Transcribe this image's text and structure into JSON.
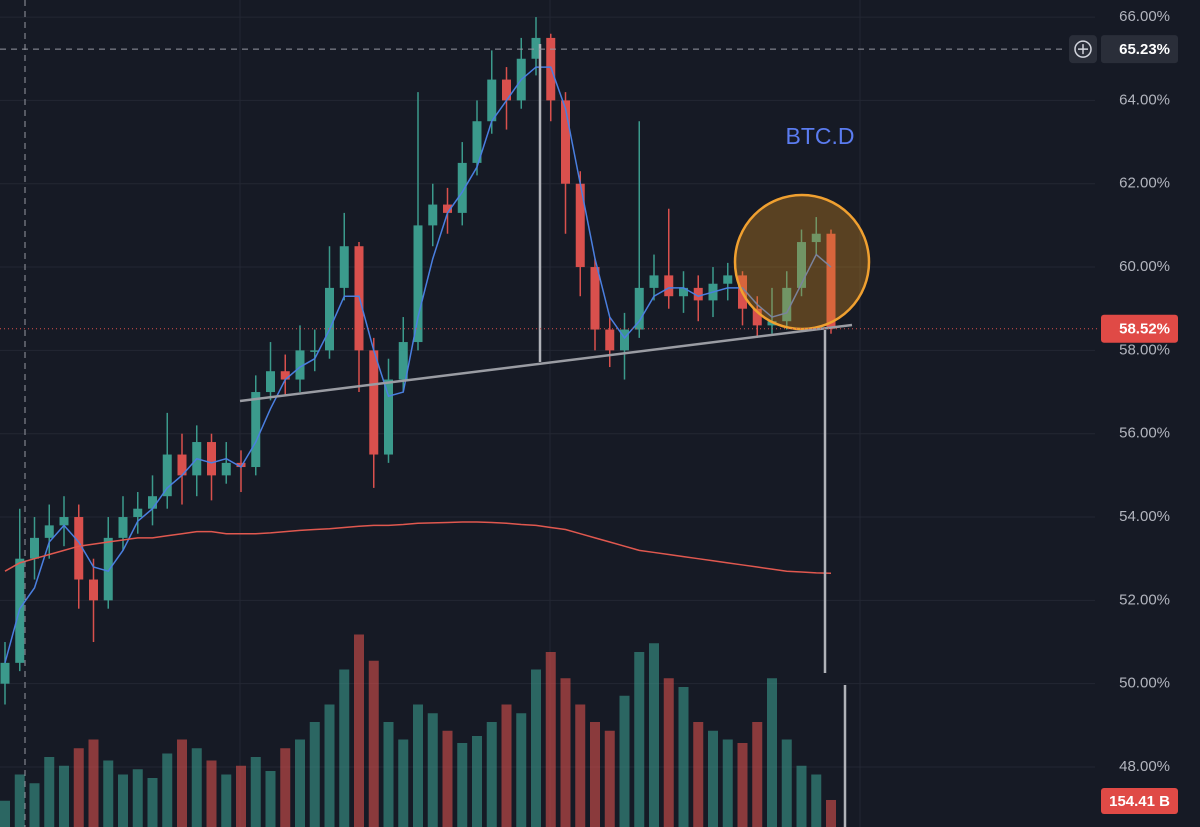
{
  "chart_data": {
    "type": "candlestick",
    "annotation": "BTC.D",
    "ylim": [
      46.56,
      66.41
    ],
    "yticks": [
      {
        "value": 48,
        "label": "48.00%"
      },
      {
        "value": 50,
        "label": "50.00%"
      },
      {
        "value": 52,
        "label": "52.00%"
      },
      {
        "value": 54,
        "label": "54.00%"
      },
      {
        "value": 56,
        "label": "56.00%"
      },
      {
        "value": 58,
        "label": "58.00%"
      },
      {
        "value": 60,
        "label": "60.00%"
      },
      {
        "value": 62,
        "label": "62.00%"
      },
      {
        "value": 64,
        "label": "64.00%"
      },
      {
        "value": 66,
        "label": "66.00%"
      }
    ],
    "up_color": "#3b9a8c",
    "down_color": "#d9504d",
    "open": [
      50.0,
      50.5,
      53.0,
      53.5,
      53.8,
      54.0,
      52.5,
      52.0,
      53.5,
      54.0,
      54.2,
      54.5,
      55.5,
      55.0,
      55.8,
      55.0,
      55.3,
      55.2,
      57.0,
      57.5,
      57.3,
      58.0,
      58.0,
      59.5,
      60.5,
      58.0,
      55.5,
      57.3,
      58.2,
      61.0,
      61.5,
      61.3,
      62.5,
      63.5,
      64.5,
      64.0,
      65.0,
      65.5,
      64.0,
      62.0,
      60.0,
      58.5,
      58.0,
      58.5,
      59.5,
      59.8,
      59.3,
      59.5,
      59.2,
      59.6,
      59.8,
      59.0,
      58.6,
      58.7,
      59.5,
      60.6,
      60.8
    ],
    "high": [
      51.0,
      54.2,
      54.0,
      54.3,
      54.5,
      54.3,
      53.0,
      54.0,
      54.5,
      54.6,
      55.0,
      56.5,
      56.0,
      56.2,
      56.0,
      55.8,
      55.6,
      57.4,
      58.2,
      57.9,
      58.6,
      58.5,
      60.5,
      61.3,
      60.6,
      58.3,
      57.8,
      58.8,
      64.2,
      62.0,
      61.9,
      63.0,
      64.0,
      65.2,
      64.8,
      65.5,
      66.0,
      65.6,
      64.2,
      62.3,
      60.2,
      58.8,
      58.9,
      63.5,
      60.3,
      61.4,
      59.9,
      59.8,
      60.0,
      60.1,
      59.9,
      59.3,
      59.5,
      59.9,
      60.9,
      61.2,
      60.9
    ],
    "low": [
      49.5,
      50.3,
      52.5,
      53.0,
      53.3,
      51.8,
      51.0,
      51.8,
      53.2,
      53.6,
      53.8,
      54.2,
      54.3,
      54.5,
      54.4,
      54.8,
      54.6,
      55.0,
      56.8,
      56.9,
      57.0,
      57.5,
      57.8,
      59.2,
      57.0,
      54.7,
      55.3,
      57.0,
      58.0,
      60.5,
      60.8,
      61.0,
      62.2,
      63.2,
      63.3,
      63.8,
      64.6,
      63.5,
      60.8,
      59.3,
      58.0,
      57.6,
      57.3,
      58.3,
      59.2,
      59.0,
      58.9,
      58.7,
      58.8,
      59.2,
      58.6,
      58.3,
      58.4,
      58.5,
      59.3,
      60.3,
      58.4
    ],
    "close": [
      50.5,
      53.0,
      53.5,
      53.8,
      54.0,
      52.5,
      52.0,
      53.5,
      54.0,
      54.2,
      54.5,
      55.5,
      55.0,
      55.8,
      55.0,
      55.3,
      55.2,
      57.0,
      57.5,
      57.3,
      58.0,
      58.0,
      59.5,
      60.5,
      58.0,
      55.5,
      57.3,
      58.2,
      61.0,
      61.5,
      61.3,
      62.5,
      63.5,
      64.5,
      64.0,
      65.0,
      65.5,
      64.0,
      62.0,
      60.0,
      58.5,
      58.0,
      58.5,
      59.5,
      59.8,
      59.3,
      59.5,
      59.2,
      59.6,
      59.8,
      59.0,
      58.6,
      58.7,
      59.5,
      60.6,
      60.8,
      58.52
    ],
    "lines": [
      {
        "color": "#4a7fe0",
        "values": [
          50.5,
          51.8,
          52.3,
          53.4,
          53.8,
          53.4,
          52.8,
          52.7,
          53.2,
          53.9,
          54.2,
          54.7,
          55.0,
          55.4,
          55.3,
          55.4,
          55.2,
          55.8,
          56.6,
          57.3,
          57.6,
          57.8,
          58.5,
          59.3,
          59.3,
          58.0,
          56.9,
          57.0,
          58.8,
          60.2,
          61.3,
          61.8,
          62.4,
          63.5,
          64.0,
          64.5,
          64.8,
          64.8,
          63.8,
          62.0,
          60.2,
          58.8,
          58.3,
          58.7,
          59.3,
          59.5,
          59.5,
          59.3,
          59.4,
          59.5,
          59.5,
          59.1,
          58.8,
          58.9,
          59.6,
          60.3,
          60.0
        ]
      },
      {
        "color": "#e0584f",
        "values": [
          52.7,
          52.9,
          53.0,
          53.1,
          53.2,
          53.3,
          53.35,
          53.4,
          53.45,
          53.5,
          53.5,
          53.55,
          53.6,
          53.65,
          53.65,
          53.6,
          53.6,
          53.6,
          53.62,
          53.65,
          53.68,
          53.7,
          53.72,
          53.75,
          53.78,
          53.8,
          53.8,
          53.82,
          53.85,
          53.86,
          53.87,
          53.88,
          53.88,
          53.87,
          53.85,
          53.82,
          53.8,
          53.75,
          53.7,
          53.6,
          53.5,
          53.4,
          53.3,
          53.2,
          53.15,
          53.1,
          53.05,
          53.0,
          52.95,
          52.9,
          52.85,
          52.8,
          52.75,
          52.7,
          52.68,
          52.66,
          52.65
        ]
      }
    ],
    "volume": {
      "ylim": [
        0,
        1200
      ],
      "values": [
        150,
        300,
        250,
        400,
        350,
        450,
        500,
        380,
        300,
        330,
        280,
        420,
        500,
        450,
        380,
        300,
        350,
        400,
        320,
        450,
        500,
        600,
        700,
        900,
        1100,
        950,
        600,
        500,
        700,
        650,
        550,
        480,
        520,
        600,
        700,
        650,
        900,
        1000,
        850,
        700,
        600,
        550,
        750,
        1000,
        1050,
        850,
        800,
        600,
        550,
        500,
        480,
        600,
        850,
        500,
        350,
        300,
        154.41
      ],
      "last_label": "154.41 B"
    },
    "crosshair": {
      "value": 65.23,
      "label": "65.23%"
    },
    "last_price": {
      "value": 58.52,
      "label": "58.52%"
    }
  }
}
